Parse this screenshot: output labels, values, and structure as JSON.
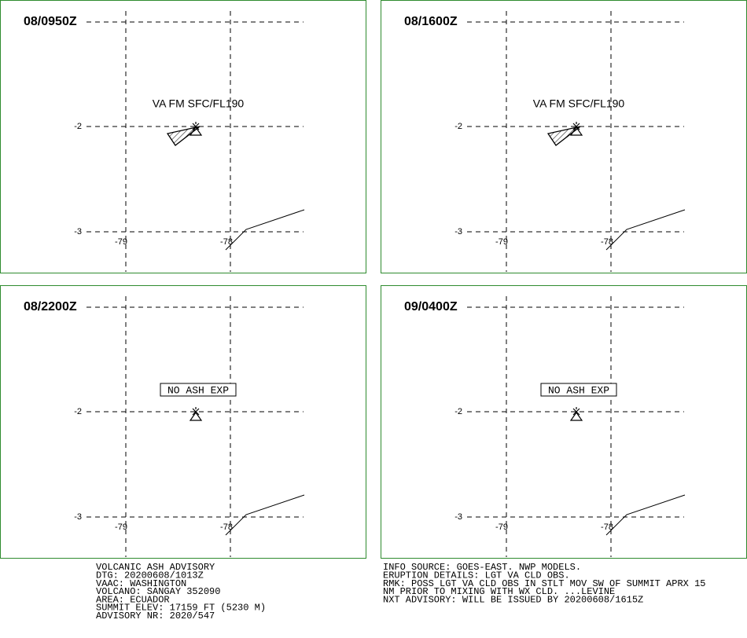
{
  "panels": [
    {
      "time": "08/0950Z",
      "annotation": "VA FM SFC/FL190",
      "lat_labels": [
        "-2",
        "-3"
      ],
      "lon_labels": [
        "-79",
        "-78"
      ]
    },
    {
      "time": "08/1600Z",
      "annotation": "VA FM SFC/FL190",
      "lat_labels": [
        "-2",
        "-3"
      ],
      "lon_labels": [
        "-79",
        "-78"
      ]
    },
    {
      "time": "08/2200Z",
      "annotation": "NO ASH EXP",
      "lat_labels": [
        "-2",
        "-3"
      ],
      "lon_labels": [
        "-79",
        "-78"
      ]
    },
    {
      "time": "09/0400Z",
      "annotation": "NO ASH EXP",
      "lat_labels": [
        "-2",
        "-3"
      ],
      "lon_labels": [
        "-79",
        "-78"
      ]
    }
  ],
  "footer": {
    "left": [
      "VOLCANIC ASH ADVISORY",
      "DTG: 20200608/1013Z",
      "VAAC: WASHINGTON",
      "VOLCANO: SANGAY 352090",
      "AREA: ECUADOR",
      "SUMMIT ELEV: 17159 FT (5230 M)",
      "ADVISORY NR: 2020/547"
    ],
    "right": [
      "INFO SOURCE: GOES-EAST. NWP MODELS.",
      "ERUPTION DETAILS: LGT VA CLD OBS.",
      "RMK: POSS LGT VA CLD OBS IN STLT MOV SW OF SUMMIT APRX 15",
      "NM PRIOR TO MIXING WITH WX CLD. ...LEVINE",
      "NXT ADVISORY: WILL BE ISSUED BY 20200608/1615Z"
    ]
  }
}
